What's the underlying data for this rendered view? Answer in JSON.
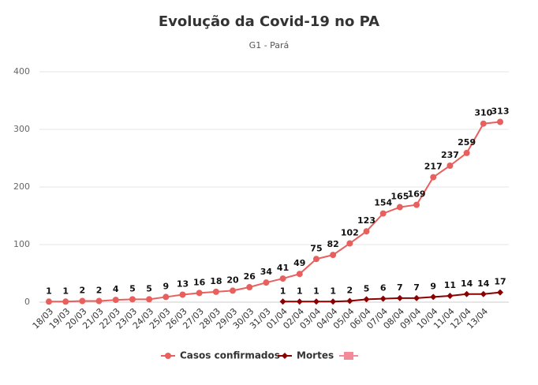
{
  "chart_data": {
    "type": "line",
    "title": "Evolução da Covid-19 no PA",
    "subtitle": "G1 - Pará",
    "categories": [
      "18/03",
      "19/03",
      "20/03",
      "21/03",
      "22/03",
      "23/03",
      "24/03",
      "25/03",
      "26/03",
      "27/03",
      "28/03",
      "29/03",
      "30/03",
      "31/03",
      "01/04",
      "02/04",
      "03/04",
      "04/04",
      "05/04",
      "06/04",
      "07/04",
      "08/04",
      "09/04",
      "10/04",
      "11/04",
      "12/04",
      "13/04",
      null
    ],
    "series": [
      {
        "name": "Casos confirmados",
        "color": "#e8605e",
        "values": [
          1,
          1,
          2,
          2,
          4,
          5,
          5,
          9,
          13,
          16,
          18,
          20,
          26,
          34,
          41,
          49,
          75,
          82,
          102,
          123,
          154,
          165,
          169,
          217,
          237,
          259,
          310,
          313
        ]
      },
      {
        "name": "Mortes",
        "color": "#8b0000",
        "values": [
          null,
          null,
          null,
          null,
          null,
          null,
          null,
          null,
          null,
          null,
          null,
          null,
          null,
          null,
          1,
          1,
          1,
          1,
          2,
          5,
          6,
          7,
          7,
          9,
          11,
          14,
          14,
          17
        ]
      }
    ],
    "ylim": [
      0,
      400
    ],
    "yticks": [
      0,
      100,
      200,
      300,
      400
    ],
    "grid": true
  }
}
